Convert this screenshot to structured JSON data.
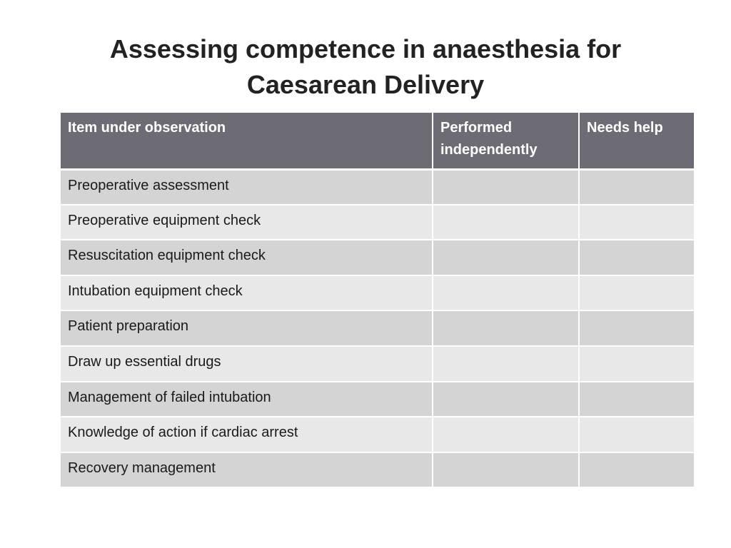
{
  "slide": {
    "title_line1": "Assessing competence in anaesthesia for",
    "title_line2": "Caesarean Delivery"
  },
  "table": {
    "headers": {
      "item": "Item under observation",
      "performed_line1": "Performed",
      "performed_line2": "independently",
      "needs_help": "Needs help"
    },
    "rows": [
      {
        "item": "Preoperative assessment",
        "performed": "",
        "needs_help": ""
      },
      {
        "item": "Preoperative equipment check",
        "performed": "",
        "needs_help": ""
      },
      {
        "item": "Resuscitation equipment check",
        "performed": "",
        "needs_help": ""
      },
      {
        "item": "Intubation equipment check",
        "performed": "",
        "needs_help": ""
      },
      {
        "item": "Patient preparation",
        "performed": "",
        "needs_help": ""
      },
      {
        "item": "Draw up essential drugs",
        "performed": "",
        "needs_help": ""
      },
      {
        "item": "Management of failed intubation",
        "performed": "",
        "needs_help": ""
      },
      {
        "item": "Knowledge of action if cardiac arrest",
        "performed": "",
        "needs_help": ""
      },
      {
        "item": "Recovery management",
        "performed": "",
        "needs_help": ""
      }
    ]
  },
  "colors": {
    "header_bg": "#6d6c74",
    "row_dark": "#d4d4d4",
    "row_light": "#e8e8e8"
  }
}
